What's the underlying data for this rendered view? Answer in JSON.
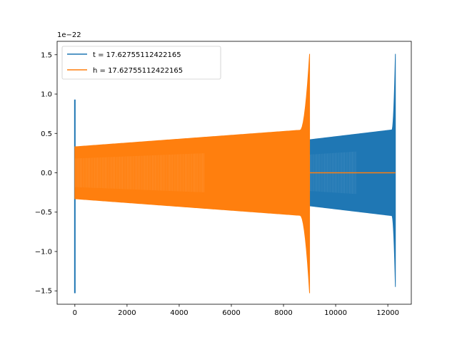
{
  "chart_data": {
    "type": "line",
    "title": "",
    "xlabel": "",
    "ylabel": "",
    "y_offset_label": "1e−22",
    "xlim": [
      -680,
      12900
    ],
    "ylim": [
      -1.67,
      1.67
    ],
    "x_ticks": [
      0,
      2000,
      4000,
      6000,
      8000,
      10000,
      12000
    ],
    "x_tick_labels": [
      "0",
      "2000",
      "4000",
      "6000",
      "8000",
      "10000",
      "12000"
    ],
    "y_ticks": [
      -1.5,
      -1.0,
      -0.5,
      0.0,
      0.5,
      1.0,
      1.5
    ],
    "y_tick_labels": [
      "−1.5",
      "−1.0",
      "−0.5",
      "0.0",
      "0.5",
      "1.0",
      "1.5"
    ],
    "grid": false,
    "legend_position": "top-left",
    "series": [
      {
        "name": "t = 17.62755112422165",
        "color": "#1f77b4",
        "segments": [
          {
            "kind": "spike",
            "x": 0,
            "ymin": -1.53,
            "ymax": 0.93
          },
          {
            "kind": "chirp_envelope",
            "x_start": 9000,
            "x_end": 12290,
            "amp_start": 0.42,
            "amp_end": 0.55,
            "final_max": 1.51,
            "final_min": -1.45
          }
        ]
      },
      {
        "name": "h = 17.62755112422165",
        "color": "#ff7f0e",
        "segments": [
          {
            "kind": "chirp_envelope",
            "x_start": 0,
            "x_end": 9000,
            "amp_start": 0.33,
            "amp_end": 0.55,
            "final_max": 1.51,
            "final_min": -1.53
          },
          {
            "kind": "flat",
            "x_start": 9000,
            "x_end": 12290,
            "y": 0.0
          }
        ]
      }
    ]
  }
}
